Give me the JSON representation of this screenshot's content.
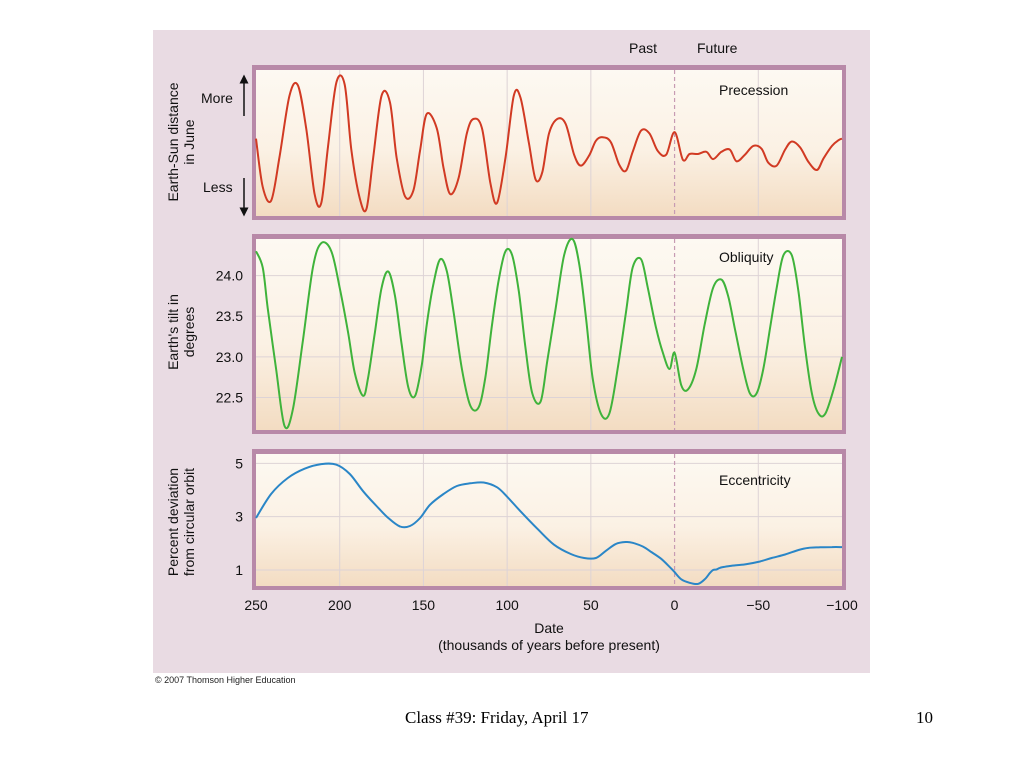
{
  "colors": {
    "precession": "#d13a23",
    "obliquity": "#3fb33b",
    "eccentricity": "#2a86c7",
    "panel_frame": "#b889a8",
    "figure_bg": "#e9dbe3"
  },
  "header": {
    "past": "Past",
    "future": "Future"
  },
  "chart_data": [
    {
      "type": "line",
      "title": "Precession",
      "ylabel": [
        "Earth-Sun distance",
        "in June"
      ],
      "y_more": "More",
      "y_less": "Less",
      "ylim": [
        -1,
        1
      ],
      "series": [
        {
          "x": [
            250,
            246,
            241,
            236,
            230,
            225,
            220,
            215,
            211,
            207,
            202,
            197,
            193,
            188,
            184,
            180,
            175,
            170,
            166,
            161,
            156,
            152,
            148,
            142,
            138,
            134,
            129,
            124,
            120,
            115,
            110,
            106,
            101,
            96,
            92,
            87,
            83,
            79,
            75,
            70,
            65,
            60,
            56,
            51,
            47,
            43,
            38,
            33,
            29,
            25,
            20,
            15,
            10,
            5,
            0,
            -5,
            -9,
            -14,
            -19,
            -23,
            -28,
            -33,
            -37,
            -42,
            -47,
            -52,
            -56,
            -61,
            -66,
            -70,
            -75,
            -80,
            -85,
            -89,
            -94,
            -98,
            -100
          ],
          "y": [
            0.06,
            -0.6,
            -0.79,
            -0.2,
            0.65,
            0.79,
            0.2,
            -0.7,
            -0.82,
            -0.05,
            0.83,
            0.8,
            -0.1,
            -0.76,
            -0.9,
            -0.2,
            0.65,
            0.56,
            -0.2,
            -0.73,
            -0.65,
            -0.1,
            0.4,
            0.2,
            -0.34,
            -0.7,
            -0.48,
            0.14,
            0.33,
            0.2,
            -0.55,
            -0.82,
            -0.2,
            0.65,
            0.62,
            0.0,
            -0.5,
            -0.4,
            0.13,
            0.33,
            0.26,
            -0.16,
            -0.31,
            -0.17,
            0.03,
            0.08,
            0.01,
            -0.3,
            -0.38,
            -0.12,
            0.17,
            0.13,
            -0.11,
            -0.16,
            0.15,
            -0.23,
            -0.15,
            -0.15,
            -0.12,
            -0.22,
            -0.12,
            -0.09,
            -0.25,
            -0.16,
            -0.04,
            -0.08,
            -0.27,
            -0.31,
            -0.09,
            0.02,
            -0.06,
            -0.26,
            -0.37,
            -0.21,
            -0.04,
            0.04,
            0.06
          ]
        }
      ]
    },
    {
      "type": "line",
      "title": "Obliquity",
      "ylabel": [
        "Earth's tilt in",
        "degrees"
      ],
      "ylim": [
        22.1,
        24.45
      ],
      "yticks": [
        "24.0",
        "23.5",
        "23.0",
        "22.5"
      ],
      "series": [
        {
          "x": [
            250,
            246,
            243,
            238,
            233,
            228,
            222,
            216,
            211,
            205,
            200,
            195,
            191,
            186,
            183,
            179,
            175,
            171,
            167,
            163,
            159,
            155,
            151,
            148,
            144,
            140,
            136,
            132,
            127,
            122,
            117,
            113,
            109,
            105,
            101,
            97,
            93,
            89,
            85,
            80,
            76,
            71,
            66,
            61,
            57,
            53,
            49,
            44,
            39,
            34,
            29,
            25,
            20,
            16,
            11,
            7,
            3,
            0,
            -4,
            -8,
            -13,
            -18,
            -23,
            -28,
            -32,
            -36,
            -41,
            -45,
            -49,
            -53,
            -57,
            -61,
            -65,
            -70,
            -74,
            -78,
            -82,
            -86,
            -90,
            -95,
            -100
          ],
          "y": [
            24.3,
            24.1,
            23.6,
            22.85,
            22.15,
            22.35,
            23.2,
            24.1,
            24.4,
            24.3,
            23.85,
            23.3,
            22.8,
            22.52,
            22.75,
            23.3,
            23.85,
            24.05,
            23.75,
            23.15,
            22.62,
            22.52,
            22.9,
            23.4,
            23.9,
            24.2,
            24.05,
            23.55,
            22.85,
            22.4,
            22.38,
            22.75,
            23.4,
            23.95,
            24.3,
            24.25,
            23.8,
            23.1,
            22.55,
            22.45,
            22.95,
            23.6,
            24.25,
            24.45,
            24.15,
            23.5,
            22.75,
            22.3,
            22.3,
            22.85,
            23.55,
            24.1,
            24.2,
            23.85,
            23.35,
            23.05,
            22.85,
            23.05,
            22.65,
            22.6,
            22.85,
            23.4,
            23.85,
            23.95,
            23.75,
            23.35,
            22.85,
            22.55,
            22.55,
            22.85,
            23.35,
            23.85,
            24.25,
            24.25,
            23.8,
            23.1,
            22.55,
            22.3,
            22.3,
            22.6,
            23.0
          ]
        }
      ]
    },
    {
      "type": "line",
      "title": "Eccentricity",
      "ylabel": [
        "Percent deviation",
        "from circular orbit"
      ],
      "ylim": [
        0.4,
        5.35
      ],
      "yticks": [
        "5",
        "3",
        "1"
      ],
      "xlabel": "Date",
      "xlabel2": "(thousands of years before present)",
      "xticks": [
        "250",
        "200",
        "150",
        "100",
        "50",
        "0",
        "−50",
        "−100"
      ],
      "series": [
        {
          "x": [
            250,
            241,
            231,
            221,
            211,
            202,
            194,
            186,
            178,
            171,
            164,
            158,
            152,
            146,
            138,
            130,
            122,
            114,
            106,
            100,
            92,
            82,
            72,
            62,
            54,
            47,
            41,
            35,
            29,
            25,
            19,
            14,
            8,
            3,
            0,
            -4,
            -9,
            -14,
            -18,
            -21,
            -23,
            -25,
            -27,
            -30,
            -33,
            -37,
            -43,
            -51,
            -58,
            -66,
            -74,
            -80,
            -87,
            -94,
            -100
          ],
          "y": [
            2.95,
            3.85,
            4.45,
            4.8,
            4.97,
            4.95,
            4.6,
            3.95,
            3.4,
            2.95,
            2.63,
            2.65,
            2.95,
            3.45,
            3.85,
            4.15,
            4.25,
            4.28,
            4.1,
            3.75,
            3.2,
            2.55,
            1.95,
            1.6,
            1.45,
            1.45,
            1.72,
            1.98,
            2.05,
            2.02,
            1.88,
            1.68,
            1.42,
            1.12,
            0.92,
            0.65,
            0.52,
            0.48,
            0.65,
            0.88,
            1.0,
            1.02,
            1.08,
            1.12,
            1.15,
            1.18,
            1.22,
            1.32,
            1.45,
            1.58,
            1.75,
            1.83,
            1.85,
            1.86,
            1.86
          ]
        }
      ]
    }
  ],
  "copyright": "© 2007 Thomson Higher Education",
  "footer": {
    "title": "Class #39: Friday, April 17",
    "page": "10"
  }
}
